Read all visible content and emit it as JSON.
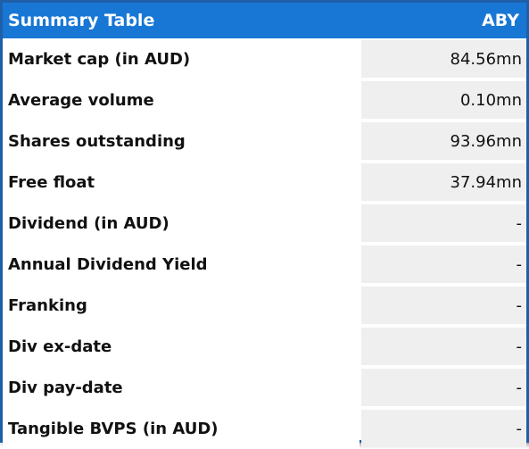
{
  "table": {
    "title": "Summary Table",
    "ticker": "ABY",
    "rows": [
      {
        "label": "Market cap (in AUD)",
        "value": "84.56mn"
      },
      {
        "label": "Average volume",
        "value": "0.10mn"
      },
      {
        "label": "Shares outstanding",
        "value": "93.96mn"
      },
      {
        "label": "Free float",
        "value": "37.94mn"
      },
      {
        "label": "Dividend (in AUD)",
        "value": "-"
      },
      {
        "label": "Annual Dividend Yield",
        "value": "-"
      },
      {
        "label": "Franking",
        "value": "-"
      },
      {
        "label": "Div ex-date",
        "value": "-"
      },
      {
        "label": "Div pay-date",
        "value": "-"
      },
      {
        "label": "Tangible BVPS (in AUD)",
        "value": "-"
      }
    ]
  },
  "colors": {
    "header_bg": "#1877d5",
    "border": "#1f5fa8",
    "value_cell_bg": "#efefef"
  }
}
